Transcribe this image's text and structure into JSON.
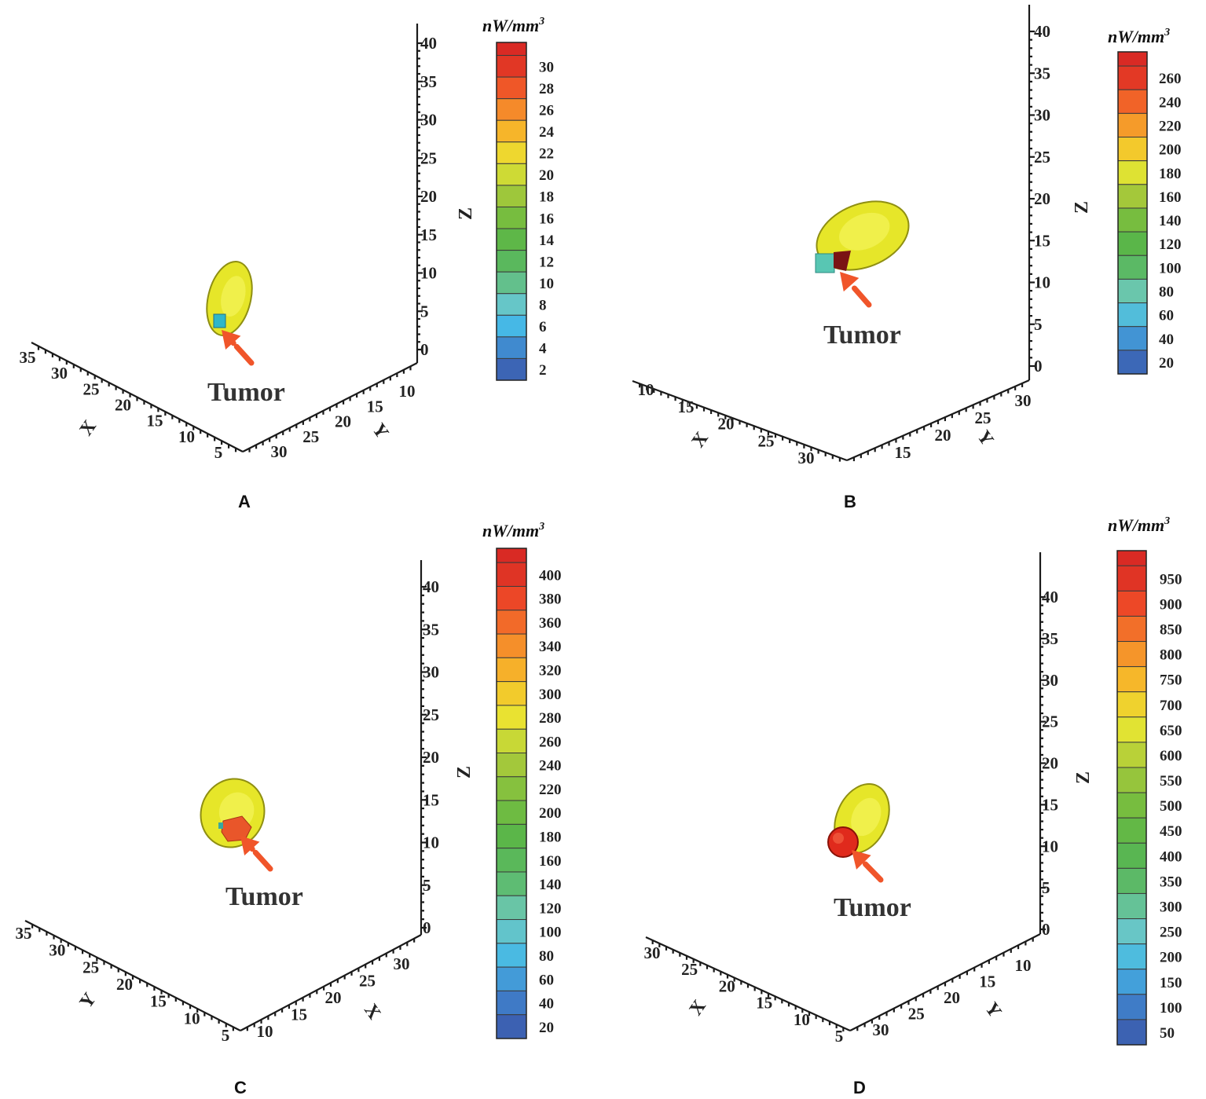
{
  "figure": {
    "panels": [
      {
        "label": "A",
        "unit": "nW/mm",
        "unit_sup": "3",
        "tumor_label": "Tumor",
        "colorbar_ticks": [
          "30",
          "28",
          "26",
          "24",
          "22",
          "20",
          "18",
          "16",
          "14",
          "12",
          "10",
          "8",
          "6",
          "4",
          "2"
        ],
        "z_ticks": [
          "40",
          "35",
          "30",
          "25",
          "20",
          "15",
          "10",
          "5",
          "0"
        ],
        "left_axis_name": "X",
        "left_axis_ticks": [
          "35",
          "30",
          "25",
          "20",
          "15",
          "10",
          "5"
        ],
        "right_axis_name": "Y",
        "right_axis_ticks": [
          "30",
          "25",
          "20",
          "15",
          "10"
        ],
        "z_axis_name": "Z",
        "hotspot": "cyan"
      },
      {
        "label": "B",
        "unit": "nW/mm",
        "unit_sup": "3",
        "tumor_label": "Tumor",
        "colorbar_ticks": [
          "260",
          "240",
          "220",
          "200",
          "180",
          "160",
          "140",
          "120",
          "100",
          "80",
          "60",
          "40",
          "20"
        ],
        "z_ticks": [
          "40",
          "35",
          "30",
          "25",
          "20",
          "15",
          "10",
          "5",
          "0"
        ],
        "left_axis_name": "X",
        "left_axis_ticks": [
          "10",
          "15",
          "20",
          "25",
          "30"
        ],
        "right_axis_name": "Y",
        "right_axis_ticks": [
          "15",
          "20",
          "25",
          "30"
        ],
        "z_axis_name": "Z",
        "hotspot": "cyan-red"
      },
      {
        "label": "C",
        "unit": "nW/mm",
        "unit_sup": "3",
        "tumor_label": "Tumor",
        "colorbar_ticks": [
          "400",
          "380",
          "360",
          "340",
          "320",
          "300",
          "280",
          "260",
          "240",
          "220",
          "200",
          "180",
          "160",
          "140",
          "120",
          "100",
          "80",
          "60",
          "40",
          "20"
        ],
        "z_ticks": [
          "40",
          "35",
          "30",
          "25",
          "20",
          "15",
          "10",
          "5",
          "0"
        ],
        "left_axis_name": "Y",
        "left_axis_ticks": [
          "35",
          "30",
          "25",
          "20",
          "15",
          "10",
          "5"
        ],
        "right_axis_name": "X",
        "right_axis_ticks": [
          "10",
          "15",
          "20",
          "25",
          "30"
        ],
        "z_axis_name": "Z",
        "hotspot": "orange"
      },
      {
        "label": "D",
        "unit": "nW/mm",
        "unit_sup": "3",
        "tumor_label": "Tumor",
        "colorbar_ticks": [
          "950",
          "900",
          "850",
          "800",
          "750",
          "700",
          "650",
          "600",
          "550",
          "500",
          "450",
          "400",
          "350",
          "300",
          "250",
          "200",
          "150",
          "100",
          "50"
        ],
        "z_ticks": [
          "40",
          "35",
          "30",
          "25",
          "20",
          "15",
          "10",
          "5",
          "0"
        ],
        "left_axis_name": "X",
        "left_axis_ticks": [
          "30",
          "25",
          "20",
          "15",
          "10",
          "5"
        ],
        "right_axis_name": "Y",
        "right_axis_ticks": [
          "30",
          "25",
          "20",
          "15",
          "10"
        ],
        "z_axis_name": "Z",
        "hotspot": "red"
      }
    ],
    "colors": {
      "tumor_fill": "#e6e629",
      "tumor_stroke": "#8f8f12",
      "arrow": "#f0552a",
      "axis": "#1a1a1a",
      "colorbar_scale": [
        "#3a55a8",
        "#3f7ec9",
        "#46b8e6",
        "#6ec9c0",
        "#5cba6a",
        "#58b54a",
        "#77bd3f",
        "#a8c93a",
        "#e8e632",
        "#f6c02a",
        "#f58a2a",
        "#ee4a27",
        "#d92a24"
      ]
    }
  }
}
